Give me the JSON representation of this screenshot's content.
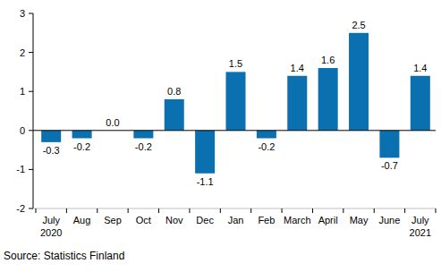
{
  "chart_data": {
    "type": "bar",
    "categories": [
      "July 2020",
      "Aug",
      "Sep",
      "Oct",
      "Nov",
      "Dec",
      "Jan",
      "Feb",
      "March",
      "April",
      "May",
      "June",
      "July 2021"
    ],
    "values": [
      -0.3,
      -0.2,
      0.0,
      -0.2,
      0.8,
      -1.1,
      1.5,
      -0.2,
      1.4,
      1.6,
      2.5,
      -0.7,
      1.4
    ],
    "value_labels": [
      "-0.3",
      "-0.2",
      "0.0",
      "-0.2",
      "0.8",
      "-1.1",
      "1.5",
      "-0.2",
      "1.4",
      "1.6",
      "2.5",
      "-0.7",
      "1.4"
    ],
    "color": "#0a70b0",
    "ylim": [
      -2,
      3
    ],
    "yticks": [
      -2,
      -1,
      0,
      1,
      2,
      3
    ],
    "grid": false,
    "data_labels": true,
    "source": "Source: Statistics Finland"
  }
}
